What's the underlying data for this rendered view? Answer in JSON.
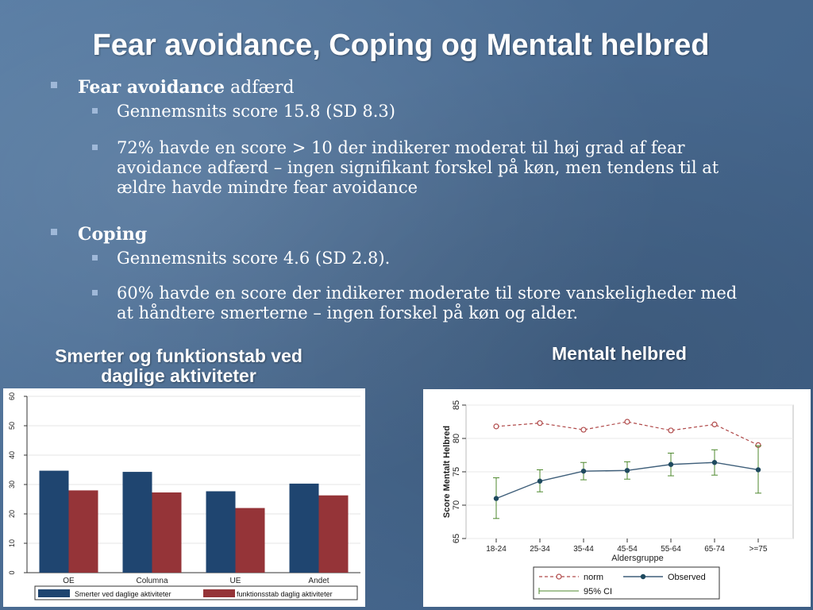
{
  "slide": {
    "title": "Fear avoidance, Coping og Mentalt helbred",
    "section1": {
      "label_bold": "Fear avoidance",
      "label_rest": " adfærd",
      "items": [
        "Gennemsnits score 15.8 (SD 8.3)",
        "72% havde en score > 10 der indikerer moderat til høj grad af fear avoidance adfærd – ingen signifikant forskel på køn, men tendens til at ældre havde mindre fear avoidance"
      ]
    },
    "section2": {
      "label_bold": "Coping",
      "items": [
        "Gennemsnits score 4.6 (SD 2.8).",
        "60% havde en score der indikerer moderate til store vanskeligheder med at håndtere smerterne – ingen forskel på køn og alder."
      ]
    },
    "caption_left": "Smerter og funktionstab ved daglige aktiviteter",
    "caption_right": "Mentalt helbred",
    "colors": {
      "bullet": "#9fb8d8",
      "bar1": "#1f4570",
      "bar2": "#953438",
      "norm": "#b04a4a",
      "observed": "#3f5f7a",
      "ci": "#4f8a2f"
    }
  },
  "chart_data": [
    {
      "type": "bar",
      "categories": [
        "OE",
        "Columna",
        "UE",
        "Andet"
      ],
      "series": [
        {
          "name": "Smerter ved daglige aktiviteter",
          "values": [
            34.7,
            34.3,
            27.7,
            30.3
          ]
        },
        {
          "name": "funktionsstab daglig aktiviteter",
          "values": [
            28.0,
            27.3,
            22.0,
            26.3
          ]
        }
      ],
      "ylim": [
        0,
        60
      ],
      "yticks": [
        "0",
        "10",
        "20",
        "30",
        "40",
        "50",
        "60"
      ],
      "grid": true,
      "legend": "bottom"
    },
    {
      "type": "line",
      "categories": [
        "18-24",
        "25-34",
        "35-44",
        "45-54",
        "55-64",
        "65-74",
        ">=75"
      ],
      "series": [
        {
          "name": "norm",
          "values": [
            81.8,
            82.3,
            81.3,
            82.5,
            81.2,
            82.1,
            79.0
          ]
        },
        {
          "name": "Observed",
          "values": [
            71.0,
            73.6,
            75.1,
            75.2,
            76.1,
            76.4,
            75.3
          ],
          "ci_low": [
            68.0,
            72.0,
            73.8,
            73.9,
            74.4,
            74.5,
            71.8
          ],
          "ci_high": [
            74.1,
            75.3,
            76.4,
            76.5,
            77.8,
            78.3,
            78.9
          ]
        }
      ],
      "ci_label": "95% CI",
      "xlabel": "Aldersgruppe",
      "ylabel": "Score Mentalt Helbred",
      "ylim": [
        65,
        85
      ],
      "yticks": [
        "65",
        "70",
        "75",
        "80",
        "85"
      ],
      "legend": "bottom"
    }
  ]
}
